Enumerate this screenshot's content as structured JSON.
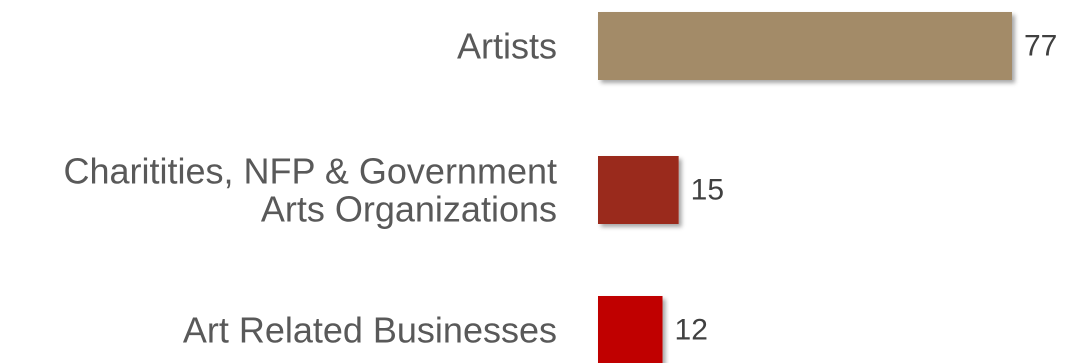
{
  "chart_data": {
    "type": "bar",
    "orientation": "horizontal",
    "categories": [
      [
        "Artists"
      ],
      [
        "Charitities, NFP & Government",
        "Arts Organizations"
      ],
      [
        "Art Related Businesses"
      ]
    ],
    "values": [
      77,
      15,
      12
    ],
    "value_labels": [
      "77",
      "15",
      "12"
    ],
    "colors": [
      "#A38B68",
      "#9A2A1E",
      "#C00000"
    ],
    "xlim": [
      0,
      77
    ],
    "grid": false,
    "legend": "none"
  }
}
